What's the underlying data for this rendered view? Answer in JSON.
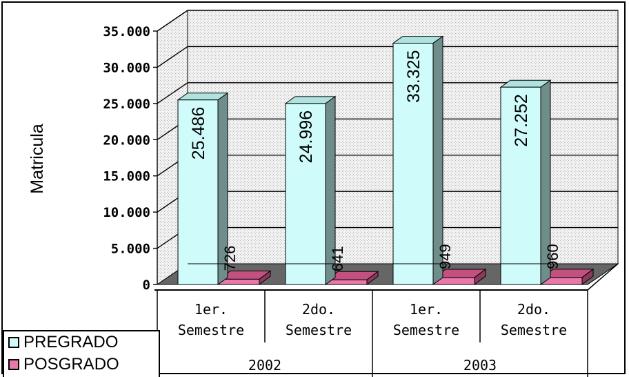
{
  "colors": {
    "pregrado_front": "#cffcfa",
    "pregrado_side": "#6f8d8a",
    "pregrado_top": "#aee3e0",
    "posgrado_front": "#e879a8",
    "posgrado_side": "#8b3a5e",
    "posgrado_top": "#c4507f",
    "floor": "#666666",
    "wall": "#e8e8e8"
  },
  "chart_data": {
    "type": "bar",
    "ylabel": "Matricula",
    "ylim": [
      0,
      35000
    ],
    "yticks": [
      "0",
      "5.000",
      "10.000",
      "15.000",
      "20.000",
      "25.000",
      "30.000",
      "35.000"
    ],
    "ytick_values": [
      0,
      5000,
      10000,
      15000,
      20000,
      25000,
      30000,
      35000
    ],
    "categories": [
      {
        "line1": "1er.",
        "line2": "Semestre",
        "group": "2002"
      },
      {
        "line1": "2do.",
        "line2": "Semestre",
        "group": "2002"
      },
      {
        "line1": "1er.",
        "line2": "Semestre",
        "group": "2003"
      },
      {
        "line1": "2do.",
        "line2": "Semestre",
        "group": "2003"
      }
    ],
    "groups": [
      "2002",
      "2003"
    ],
    "series": [
      {
        "name": "PREGRADO",
        "values": [
          25486,
          24996,
          33325,
          27252
        ],
        "labels": [
          "25.486",
          "24.996",
          "33.325",
          "27.252"
        ]
      },
      {
        "name": "POSGRADO",
        "values": [
          726,
          641,
          949,
          960
        ],
        "labels": [
          "726",
          "641",
          "949",
          "960"
        ]
      }
    ],
    "grid": true,
    "legend_position": "bottom-left"
  }
}
